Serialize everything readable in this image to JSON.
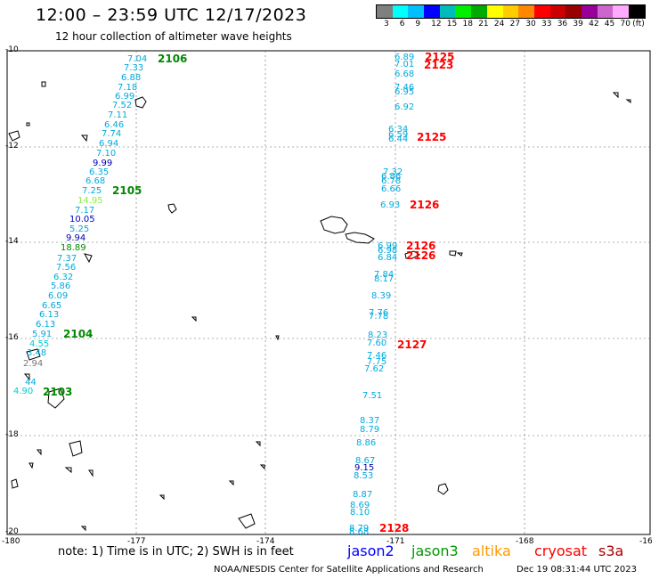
{
  "header": {
    "title": "12:00 – 23:59 UTC 12/17/2023",
    "subtitle": "12 hour collection of altimeter wave heights"
  },
  "colorbar": {
    "colors": [
      "#7f7f7f",
      "#00ffff",
      "#00bfff",
      "#0000ff",
      "#00bbbb",
      "#00ee00",
      "#00aa00",
      "#ffff00",
      "#ffcc00",
      "#ff8800",
      "#ff0000",
      "#cc0000",
      "#990000",
      "#990099",
      "#cc66cc",
      "#ffaaff",
      "#000000"
    ],
    "labels": [
      "3",
      "6",
      "9",
      "12",
      "15",
      "18",
      "21",
      "24",
      "27",
      "30",
      "33",
      "36",
      "39",
      "42",
      "45",
      "70",
      "(ft)"
    ]
  },
  "axes": {
    "lat_labels": [
      "-10",
      "-12",
      "-14",
      "-16",
      "-18",
      "-20"
    ],
    "lon_labels": [
      "-180",
      "-177",
      "-174",
      "-171",
      "-168",
      "-16"
    ]
  },
  "note": "note:  1) Time is in UTC;  2) SWH is in feet",
  "legend": [
    {
      "name": "jason2",
      "color": "#0000ff"
    },
    {
      "name": "jason3",
      "color": "#009900"
    },
    {
      "name": "altika",
      "color": "#ff9900"
    },
    {
      "name": "cryosat",
      "color": "#ff0000"
    },
    {
      "name": "s3a",
      "color": "#aa0000"
    }
  ],
  "credit": "NOAA/NESDIS Center for Satellite Applications and Research",
  "timestamp": "Dec 19 08:31:44 UTC 2023",
  "tracks": {
    "west_times": [
      {
        "text": "2106",
        "color": "#008800"
      },
      {
        "text": "2105",
        "color": "#008800"
      },
      {
        "text": "2104",
        "color": "#008800"
      },
      {
        "text": "2103",
        "color": "#008800"
      }
    ],
    "east_times": [
      {
        "text": "2125",
        "color": "#ff0000"
      },
      {
        "text": "2123",
        "color": "#ff0000"
      },
      {
        "text": "2125",
        "color": "#ff0000"
      },
      {
        "text": "2126",
        "color": "#ff0000"
      },
      {
        "text": "2126",
        "color": "#ff0000"
      },
      {
        "text": "2126",
        "color": "#ff0000"
      },
      {
        "text": "2127",
        "color": "#ff0000"
      },
      {
        "text": "2128",
        "color": "#ff0000"
      }
    ],
    "west_values": [
      {
        "text": "7.04",
        "color": "#00aadd"
      },
      {
        "text": "7.33",
        "color": "#00aadd"
      },
      {
        "text": "6.88",
        "color": "#00aadd"
      },
      {
        "text": "7.18",
        "color": "#00aadd"
      },
      {
        "text": "6.99",
        "color": "#00aadd"
      },
      {
        "text": "7.52",
        "color": "#00aadd"
      },
      {
        "text": "7.11",
        "color": "#00aadd"
      },
      {
        "text": "6.46",
        "color": "#00aadd"
      },
      {
        "text": "7.74",
        "color": "#00aadd"
      },
      {
        "text": "6.94",
        "color": "#00aadd"
      },
      {
        "text": "7.10",
        "color": "#00aadd"
      },
      {
        "text": "9.99",
        "color": "#0000aa"
      },
      {
        "text": "6.35",
        "color": "#00aadd"
      },
      {
        "text": "6.68",
        "color": "#00aadd"
      },
      {
        "text": "7.25",
        "color": "#00aadd"
      },
      {
        "text": "14.95",
        "color": "#88ee44"
      },
      {
        "text": "7.17",
        "color": "#00aadd"
      },
      {
        "text": "10.05",
        "color": "#0000cc"
      },
      {
        "text": "5.25",
        "color": "#00aadd"
      },
      {
        "text": "9.94",
        "color": "#0000aa"
      },
      {
        "text": "18.89",
        "color": "#008800"
      },
      {
        "text": "7.37",
        "color": "#00aadd"
      },
      {
        "text": "7.56",
        "color": "#00aadd"
      },
      {
        "text": "6.32",
        "color": "#00aadd"
      },
      {
        "text": "5.86",
        "color": "#00aadd"
      },
      {
        "text": "6.09",
        "color": "#00aadd"
      },
      {
        "text": "6.65",
        "color": "#00aadd"
      },
      {
        "text": "6.13",
        "color": "#00aadd"
      },
      {
        "text": "6.13",
        "color": "#00aadd"
      },
      {
        "text": "5.91",
        "color": "#00aadd"
      },
      {
        "text": "4.55",
        "color": "#00cccc"
      },
      {
        "text": "3.48",
        "color": "#00aadd"
      },
      {
        "text": "2.94",
        "color": "#777777"
      },
      {
        "text": "44",
        "color": "#00aadd"
      },
      {
        "text": "4.90",
        "color": "#00cccc"
      }
    ],
    "east_values": [
      {
        "text": "6.89",
        "color": "#00aadd"
      },
      {
        "text": "7.01",
        "color": "#00aadd"
      },
      {
        "text": "6.68",
        "color": "#00aadd"
      },
      {
        "text": "7.46",
        "color": "#00aadd"
      },
      {
        "text": "6.95",
        "color": "#00aadd"
      },
      {
        "text": "6.92",
        "color": "#00aadd"
      },
      {
        "text": "6.34",
        "color": "#00aadd"
      },
      {
        "text": "6.59",
        "color": "#00aadd"
      },
      {
        "text": "6.44",
        "color": "#00aadd"
      },
      {
        "text": "7.32",
        "color": "#00aadd"
      },
      {
        "text": "6.86",
        "color": "#00aadd"
      },
      {
        "text": "6.78",
        "color": "#00aadd"
      },
      {
        "text": "6.66",
        "color": "#00aadd"
      },
      {
        "text": "6.93",
        "color": "#00aadd"
      },
      {
        "text": "6.99",
        "color": "#00aadd"
      },
      {
        "text": "6.98",
        "color": "#00aadd"
      },
      {
        "text": "6.84",
        "color": "#00aadd"
      },
      {
        "text": "7.84",
        "color": "#00aadd"
      },
      {
        "text": "8.17",
        "color": "#00aadd"
      },
      {
        "text": "8.39",
        "color": "#00aadd"
      },
      {
        "text": "7.76",
        "color": "#00aadd"
      },
      {
        "text": "7.78",
        "color": "#00aadd"
      },
      {
        "text": "8.23",
        "color": "#00aadd"
      },
      {
        "text": "7.60",
        "color": "#00aadd"
      },
      {
        "text": "7.46",
        "color": "#00aadd"
      },
      {
        "text": "7.75",
        "color": "#00aadd"
      },
      {
        "text": "7.62",
        "color": "#00aadd"
      },
      {
        "text": "7.51",
        "color": "#00aadd"
      },
      {
        "text": "8.37",
        "color": "#00aadd"
      },
      {
        "text": "8.79",
        "color": "#00aadd"
      },
      {
        "text": "8.86",
        "color": "#00aadd"
      },
      {
        "text": "8.67",
        "color": "#00aadd"
      },
      {
        "text": "9.15",
        "color": "#0000aa"
      },
      {
        "text": "8.53",
        "color": "#00aadd"
      },
      {
        "text": "8.87",
        "color": "#00aadd"
      },
      {
        "text": "8.69",
        "color": "#00aadd"
      },
      {
        "text": "8.10",
        "color": "#00aadd"
      },
      {
        "text": "8.79",
        "color": "#00aadd"
      },
      {
        "text": "8.68",
        "color": "#00aadd"
      }
    ]
  }
}
